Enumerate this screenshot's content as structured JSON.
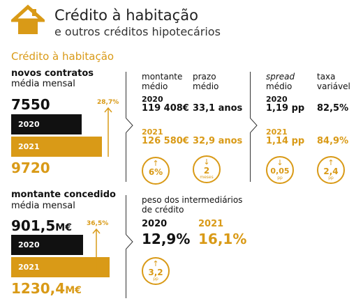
{
  "header": {
    "title": "Crédito à habitação",
    "subtitle": "e outros créditos hipotecários"
  },
  "section_title": "Crédito à habitação",
  "new_contracts": {
    "label": "novos contratos",
    "sublabel": "média mensal",
    "value_2020": "7550",
    "value_2021": "9720",
    "change": "28,7%",
    "year_2020": "2020",
    "year_2021": "2021"
  },
  "amount_granted": {
    "label": "montante concedido",
    "sublabel": "média mensal",
    "value_2020": "901,5",
    "unit_2020": "M€",
    "value_2021": "1230,4",
    "unit_2021": "M€",
    "change": "36,5%",
    "year_2020": "2020",
    "year_2021": "2021"
  },
  "amount_term": {
    "amount_label_1": "montante",
    "amount_label_2": "médio",
    "term_label_1": "prazo",
    "term_label_2": "médio",
    "year_2020": "2020",
    "amount_2020": "119 408€",
    "term_2020": "33,1 anos",
    "year_2021": "2021",
    "amount_2021": "126 580€",
    "term_2021": "32,9 anos",
    "amount_change": "6%",
    "amount_change_direction": "up",
    "term_change": "2",
    "term_change_unit": "meses",
    "term_change_direction": "down"
  },
  "spread_rate": {
    "spread_label_1": "spread",
    "spread_label_2": "médio",
    "rate_label_1": "taxa",
    "rate_label_2": "variável",
    "year_2020": "2020",
    "spread_2020": "1,19 pp",
    "rate_2020": "82,5%",
    "year_2021": "2021",
    "spread_2021": "1,14 pp",
    "rate_2021": "84,9%",
    "spread_change": "0,05",
    "spread_change_unit": "pp",
    "spread_change_direction": "down",
    "rate_change": "2,4",
    "rate_change_unit": "pp",
    "rate_change_direction": "up"
  },
  "intermediaries": {
    "label_1": "peso dos intermediários",
    "label_2": "de crédito",
    "year_2020": "2020",
    "value_2020": "12,9%",
    "year_2021": "2021",
    "value_2021": "16,1%",
    "change": "3,2",
    "change_unit": "pp",
    "change_direction": "up"
  },
  "colors": {
    "accent": "#d99a17",
    "dark": "#111111"
  },
  "icons": {
    "logo": "house-icon",
    "up": "arrow-up-icon",
    "down": "arrow-down-icon"
  }
}
